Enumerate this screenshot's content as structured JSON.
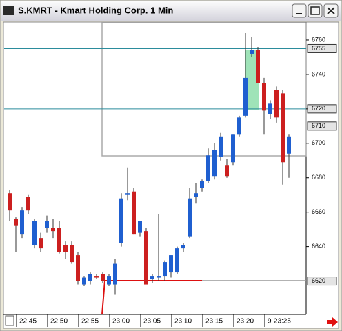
{
  "chart_data": {
    "type": "candlestick",
    "title": "S.KMRT - Kmart Holding Corp. 1 Min",
    "categories": [
      null,
      "22:45",
      null,
      null,
      null,
      null,
      "22:50",
      null,
      null,
      null,
      null,
      "22:55",
      null,
      null,
      null,
      null,
      "23:00",
      null,
      null,
      null,
      null,
      "23:05",
      null,
      null,
      null,
      null,
      "23:10",
      null,
      null,
      null,
      null,
      "23:15",
      null,
      null,
      null,
      null,
      "23:20",
      null,
      null,
      null,
      null,
      "9-23:25",
      null,
      null,
      null,
      null
    ],
    "open": [
      6671,
      6656,
      6647,
      6669,
      6641,
      6645,
      6651,
      6651,
      6651,
      6641,
      6641,
      6635,
      6618,
      6620,
      6623,
      6624,
      6618,
      6618,
      6642,
      6670,
      6672,
      6648,
      6649,
      6621,
      6622,
      6623,
      6625,
      6625,
      6639,
      6646,
      6669,
      6674,
      6678,
      6681,
      6692,
      6687,
      6689,
      6705,
      6716,
      6752,
      6754,
      6735,
      6717,
      6731,
      6729,
      6694
    ],
    "high": [
      6673,
      6657,
      6663,
      6670,
      6656,
      6648,
      6658,
      6656,
      6655,
      6643,
      6643,
      6637,
      6623,
      6625,
      6624,
      6625,
      6624,
      6633,
      6671,
      6686,
      6674,
      6655,
      6651,
      6624,
      6659,
      6632,
      6635,
      6640,
      6642,
      6674,
      6677,
      6679,
      6697,
      6700,
      6706,
      6691,
      6705,
      6716,
      6764,
      6762,
      6756,
      6738,
      6725,
      6733,
      6731,
      6705
    ],
    "low": [
      6655,
      6637,
      6645,
      6659,
      6639,
      6637,
      6648,
      6645,
      6636,
      6633,
      6630,
      6618,
      6617,
      6618,
      6621,
      6619,
      6617,
      6612,
      6640,
      6667,
      6647,
      6646,
      6618,
      6619,
      6620,
      6620,
      6622,
      6624,
      6637,
      6645,
      6665,
      6672,
      6677,
      6679,
      6690,
      6680,
      6687,
      6704,
      6715,
      6750,
      6735,
      6705,
      6714,
      6712,
      6676,
      6680
    ],
    "close": [
      6661,
      6652,
      6661,
      6661,
      6655,
      6639,
      6655,
      6649,
      6637,
      6637,
      6631,
      6620,
      6622,
      6624,
      6622,
      6620,
      6623,
      6630,
      6668,
      6671,
      6647,
      6655,
      6618,
      6623,
      6623,
      6631,
      6635,
      6639,
      6641,
      6668,
      6671,
      6678,
      6693,
      6696,
      6704,
      6681,
      6705,
      6715,
      6738,
      6754,
      6735,
      6719,
      6723,
      6715,
      6689,
      6704
    ],
    "up_color": "#1f5fd0",
    "down_color": "#cc1f1f",
    "ylim": [
      6601,
      6770
    ],
    "yticks": [
      6640,
      6660,
      6680,
      6700,
      6720,
      6740,
      6760
    ],
    "horizontal_lines": [
      {
        "value": 6755,
        "color": "#2b8c9c"
      },
      {
        "value": 6720,
        "color": "#2b8c9c"
      }
    ],
    "price_markers": [
      6755,
      6720,
      6710,
      6620
    ]
  }
}
